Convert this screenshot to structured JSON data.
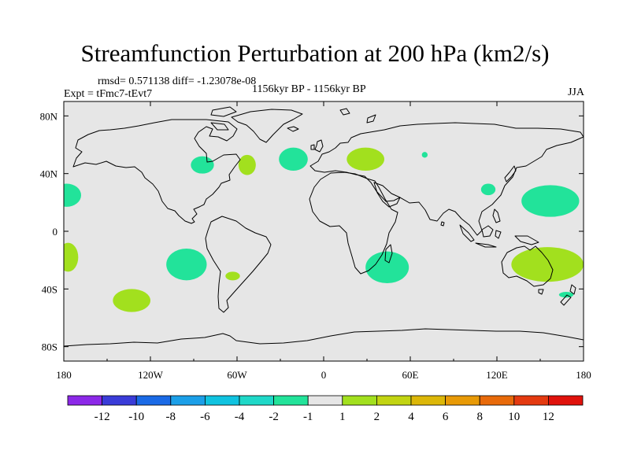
{
  "title": "Streamfunction Perturbation at 200 hPa (km2/s)",
  "stats_line": "rmsd= 0.571138 diff= -1.23078e-08",
  "left_label": "Expt = tFmc7-tEvt7",
  "center_label": "1156kyr BP - 1156kyr BP",
  "right_label": "JJA",
  "map": {
    "lon_range": [
      -180,
      180
    ],
    "lat_range": [
      -90,
      90
    ],
    "x_ticks": [
      {
        "lon": -180,
        "label": "180"
      },
      {
        "lon": -120,
        "label": "120W"
      },
      {
        "lon": -60,
        "label": "60W"
      },
      {
        "lon": 0,
        "label": "0"
      },
      {
        "lon": 60,
        "label": "60E"
      },
      {
        "lon": 120,
        "label": "120E"
      },
      {
        "lon": 180,
        "label": "180"
      }
    ],
    "y_ticks": [
      {
        "lat": 80,
        "label": "80N"
      },
      {
        "lat": 40,
        "label": "40N"
      },
      {
        "lat": 0,
        "label": "0"
      },
      {
        "lat": -40,
        "label": "40S"
      },
      {
        "lat": -80,
        "label": "80S"
      }
    ],
    "background_color": "#e6e6e6",
    "coast_color": "#000000",
    "anomalies": [
      {
        "name": "west-pacific-low-north",
        "lon": -178,
        "lat": 25,
        "rlon": 10,
        "rlat": 8,
        "color": "#22e39a"
      },
      {
        "name": "great-lakes",
        "lon": -84,
        "lat": 46,
        "rlon": 8,
        "rlat": 6,
        "color": "#22e39a"
      },
      {
        "name": "newfoundland",
        "lon": -53,
        "lat": 46,
        "rlon": 6,
        "rlat": 7,
        "color": "#a2e01e"
      },
      {
        "name": "north-atlantic",
        "lon": -21,
        "lat": 50,
        "rlon": 10,
        "rlat": 8,
        "color": "#22e39a"
      },
      {
        "name": "europe",
        "lon": 29,
        "lat": 50,
        "rlon": 13,
        "rlat": 8,
        "color": "#a2e01e"
      },
      {
        "name": "caspian",
        "lon": 70,
        "lat": 53,
        "rlon": 2,
        "rlat": 2,
        "color": "#22e39a"
      },
      {
        "name": "china",
        "lon": 114,
        "lat": 29,
        "rlon": 5,
        "rlat": 4,
        "color": "#22e39a"
      },
      {
        "name": "north-pacific",
        "lon": 157,
        "lat": 21,
        "rlon": 20,
        "rlat": 11,
        "color": "#22e39a"
      },
      {
        "name": "south-pacific-west-edge",
        "lon": -177,
        "lat": -18,
        "rlon": 7,
        "rlat": 10,
        "color": "#a2e01e"
      },
      {
        "name": "east-pacific-south",
        "lon": -95,
        "lat": -23,
        "rlon": 14,
        "rlat": 11,
        "color": "#22e39a"
      },
      {
        "name": "south-pacific",
        "lon": -133,
        "lat": -48,
        "rlon": 13,
        "rlat": 8,
        "color": "#a2e01e"
      },
      {
        "name": "uruguay",
        "lon": -63,
        "lat": -31,
        "rlon": 5,
        "rlat": 3,
        "color": "#a2e01e"
      },
      {
        "name": "southern-africa",
        "lon": 44,
        "lat": -25,
        "rlon": 15,
        "rlat": 11,
        "color": "#22e39a"
      },
      {
        "name": "australia",
        "lon": 155,
        "lat": -23,
        "rlon": 25,
        "rlat": 12,
        "color": "#a2e01e"
      },
      {
        "name": "new-zealand",
        "lon": 168,
        "lat": -44,
        "rlon": 5,
        "rlat": 2,
        "color": "#22e39a"
      }
    ]
  },
  "colorbar": {
    "colors": [
      "#8c28e8",
      "#3a3cd8",
      "#1a6ae6",
      "#1b9fe8",
      "#10c3e0",
      "#1fd8c8",
      "#22e39a",
      "#e6e6e6",
      "#a2e01e",
      "#c2d412",
      "#dcb708",
      "#e89a06",
      "#e86a0a",
      "#e43a10",
      "#e0120c"
    ],
    "labels": [
      "-12",
      "-10",
      "-8",
      "-6",
      "-4",
      "-2",
      "-1",
      "1",
      "2",
      "4",
      "6",
      "8",
      "10",
      "12"
    ]
  }
}
